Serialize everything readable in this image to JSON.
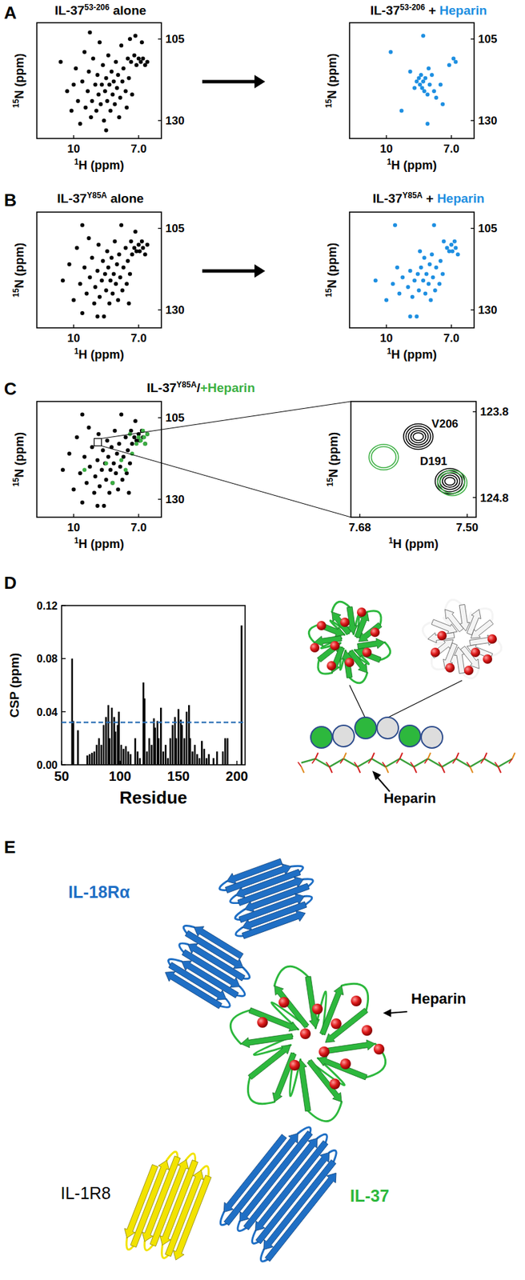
{
  "diagram": {
    "panel_labels": [
      "A",
      "B",
      "C",
      "D",
      "E"
    ],
    "d_schematic": {
      "heparin": "Heparin"
    },
    "e_structure": {
      "receptor_1": {
        "text": "IL-18Rα",
        "color": "#1f6fc5"
      },
      "receptor_2": {
        "text": "IL-1R8",
        "color": "#000000"
      },
      "ligand": {
        "text": "IL-37",
        "color": "#2db83d"
      },
      "heparin": "Heparin"
    }
  },
  "chart_data": [
    {
      "type": "scatter",
      "title": [
        {
          "text": "IL-37"
        },
        {
          "text": "53-206",
          "sup": true
        },
        {
          "text": " alone"
        }
      ],
      "x_label": [
        {
          "text": "1",
          "sup": true
        },
        {
          "text": "H (ppm)"
        }
      ],
      "y_label": [
        {
          "text": "15",
          "sup": true
        },
        {
          "text": "N (ppm)"
        }
      ],
      "xlim": [
        11.7,
        5.95
      ],
      "ylim": [
        135.5,
        100
      ],
      "xticks": [
        10,
        {
          "value": 7,
          "label": "7.0"
        }
      ],
      "yticks": [
        105,
        130
      ],
      "series": [
        {
          "color": "#000000",
          "marker": "circle",
          "x": [
            10.6,
            10.3,
            10.1,
            9.9,
            9.8,
            9.7,
            9.6,
            9.5,
            9.45,
            9.35,
            9.3,
            9.2,
            9.15,
            9.1,
            9.0,
            8.95,
            8.9,
            8.85,
            8.8,
            8.75,
            8.7,
            8.65,
            8.6,
            8.55,
            8.5,
            8.45,
            8.4,
            8.35,
            8.3,
            8.25,
            8.2,
            8.15,
            8.1,
            8.05,
            8.0,
            7.95,
            7.9,
            7.85,
            7.8,
            7.75,
            7.7,
            7.6,
            7.55,
            7.5,
            7.45,
            7.4,
            7.35,
            7.3,
            7.2,
            7.15,
            7.1,
            7.0,
            6.9,
            6.85,
            6.8,
            6.7,
            6.6,
            9.25,
            8.5,
            10.0
          ],
          "values": [
            112,
            121,
            127,
            114,
            124,
            131,
            118,
            109,
            126,
            121,
            115,
            129,
            124,
            111,
            119,
            127,
            116,
            122,
            106,
            125,
            119,
            113,
            130,
            121,
            117,
            124,
            110,
            119,
            127,
            115,
            122,
            118,
            125,
            112,
            120,
            116,
            129,
            123,
            107,
            118,
            114,
            121,
            126,
            111,
            117,
            105,
            112,
            122,
            110,
            104,
            113,
            111,
            112,
            106,
            111,
            113,
            112,
            103,
            133,
            119
          ]
        }
      ]
    },
    {
      "type": "scatter",
      "title": [
        {
          "text": "IL-37"
        },
        {
          "text": "53-206",
          "sup": true
        },
        {
          "text": " + "
        },
        {
          "text": "Heparin",
          "color": "#1e8fe1"
        }
      ],
      "x_label": [
        {
          "text": "1",
          "sup": true
        },
        {
          "text": "H (ppm)"
        }
      ],
      "y_label": [
        {
          "text": "15",
          "sup": true
        },
        {
          "text": "N (ppm)"
        }
      ],
      "xlim": [
        11.7,
        5.95
      ],
      "ylim": [
        135.5,
        100
      ],
      "xticks": [
        10,
        {
          "value": 7,
          "label": "7.0"
        }
      ],
      "yticks": [
        105,
        130
      ],
      "series": [
        {
          "color": "#1e8fe1",
          "marker": "circle",
          "x": [
            9.8,
            9.3,
            8.9,
            8.7,
            8.6,
            8.5,
            8.45,
            8.4,
            8.35,
            8.3,
            8.25,
            8.2,
            8.1,
            8.05,
            8.0,
            7.9,
            7.8,
            7.7,
            7.5,
            7.1,
            6.9,
            6.8,
            8.3,
            8.1,
            7.4
          ],
          "values": [
            109,
            127,
            115,
            120,
            118,
            117,
            119,
            116,
            120,
            118,
            121,
            117,
            122,
            114,
            119,
            116,
            121,
            123,
            119,
            113,
            111,
            112,
            104,
            131,
            125
          ]
        }
      ]
    },
    {
      "type": "scatter",
      "title": [
        {
          "text": "IL-37"
        },
        {
          "text": "Y85A",
          "sup": true
        },
        {
          "text": " alone"
        }
      ],
      "x_label": [
        {
          "text": "1",
          "sup": true
        },
        {
          "text": "H (ppm)"
        }
      ],
      "y_label": [
        {
          "text": "15",
          "sup": true
        },
        {
          "text": "N (ppm)"
        }
      ],
      "xlim": [
        11.7,
        5.95
      ],
      "ylim": [
        135.5,
        100
      ],
      "xticks": [
        10,
        {
          "value": 7,
          "label": "7.0"
        }
      ],
      "yticks": [
        105,
        130
      ],
      "series": [
        {
          "color": "#000000",
          "marker": "circle",
          "x": [
            10.5,
            10.2,
            10.0,
            9.85,
            9.7,
            9.6,
            9.5,
            9.4,
            9.3,
            9.25,
            9.15,
            9.05,
            9.0,
            8.9,
            8.85,
            8.8,
            8.7,
            8.65,
            8.6,
            8.55,
            8.5,
            8.45,
            8.4,
            8.35,
            8.3,
            8.25,
            8.2,
            8.15,
            8.1,
            8.05,
            8.0,
            7.95,
            7.9,
            7.85,
            7.8,
            7.75,
            7.7,
            7.6,
            7.55,
            7.5,
            7.45,
            7.4,
            7.35,
            7.3,
            7.2,
            7.15,
            7.1,
            7.0,
            6.95,
            6.85,
            6.8,
            6.7,
            6.6,
            9.6,
            8.9
          ],
          "values": [
            121,
            116,
            127,
            111,
            122,
            131,
            117,
            125,
            108,
            120,
            114,
            128,
            123,
            118,
            110,
            126,
            121,
            115,
            132,
            119,
            124,
            112,
            117,
            128,
            121,
            114,
            125,
            119,
            109,
            122,
            116,
            127,
            113,
            120,
            104,
            124,
            117,
            111,
            122,
            115,
            128,
            119,
            109,
            113,
            111,
            106,
            112,
            110,
            112,
            109,
            111,
            113,
            110,
            104,
            132
          ]
        }
      ]
    },
    {
      "type": "scatter",
      "title": [
        {
          "text": "IL-37"
        },
        {
          "text": "Y85A",
          "sup": true
        },
        {
          "text": " + "
        },
        {
          "text": "Heparin",
          "color": "#1e8fe1"
        }
      ],
      "x_label": [
        {
          "text": "1",
          "sup": true
        },
        {
          "text": "H (ppm)"
        }
      ],
      "y_label": [
        {
          "text": "15",
          "sup": true
        },
        {
          "text": "N (ppm)"
        }
      ],
      "xlim": [
        11.7,
        5.95
      ],
      "ylim": [
        135.5,
        100
      ],
      "xticks": [
        10,
        {
          "value": 7,
          "label": "7.0"
        }
      ],
      "yticks": [
        105,
        130
      ],
      "series": [
        {
          "color": "#1e8fe1",
          "marker": "circle",
          "x": [
            10.5,
            10.0,
            9.7,
            9.5,
            9.4,
            9.25,
            9.0,
            8.9,
            8.8,
            8.7,
            8.6,
            8.55,
            8.5,
            8.45,
            8.4,
            8.3,
            8.25,
            8.2,
            8.15,
            8.05,
            8.0,
            7.95,
            7.9,
            7.85,
            7.8,
            7.75,
            7.7,
            7.55,
            7.5,
            7.4,
            7.35,
            7.2,
            7.1,
            7.0,
            6.95,
            6.85,
            6.8,
            6.7,
            9.6,
            8.9
          ],
          "values": [
            121,
            127,
            122,
            117,
            125,
            120,
            123,
            118,
            126,
            121,
            132,
            119,
            124,
            112,
            117,
            121,
            114,
            125,
            119,
            122,
            116,
            127,
            113,
            120,
            104,
            124,
            117,
            122,
            115,
            119,
            109,
            111,
            112,
            110,
            112,
            109,
            111,
            113,
            104,
            132
          ]
        }
      ]
    },
    {
      "type": "scatter",
      "title": [
        {
          "text": "IL-37"
        },
        {
          "text": "Y85A",
          "sup": true
        },
        {
          "text": "/"
        },
        {
          "text": "+Heparin",
          "color": "#3cb043"
        }
      ],
      "x_label": [
        {
          "text": "1",
          "sup": true
        },
        {
          "text": "H (ppm)"
        }
      ],
      "y_label": [
        {
          "text": "15",
          "sup": true
        },
        {
          "text": "N (ppm)"
        }
      ],
      "xlim": [
        11.7,
        5.95
      ],
      "ylim": [
        135.5,
        100
      ],
      "xticks": [
        10,
        {
          "value": 7,
          "label": "7.0"
        }
      ],
      "yticks": [
        105,
        130
      ],
      "series": [
        {
          "color": "#000000",
          "marker": "circle",
          "x": [
            10.5,
            10.2,
            10.0,
            9.85,
            9.7,
            9.6,
            9.5,
            9.4,
            9.3,
            9.25,
            9.15,
            9.05,
            9.0,
            8.9,
            8.85,
            8.8,
            8.7,
            8.65,
            8.6,
            8.55,
            8.5,
            8.45,
            8.4,
            8.35,
            8.3,
            8.25,
            8.2,
            8.15,
            8.1,
            8.05,
            8.0,
            7.95,
            7.9,
            7.85,
            7.8,
            7.75,
            7.7,
            7.6,
            7.55,
            7.5,
            7.45,
            7.4,
            7.35,
            7.3,
            7.2,
            7.15,
            7.1,
            7.0,
            6.95,
            6.85,
            6.8,
            6.7,
            6.6,
            9.6,
            8.9
          ],
          "values": [
            121,
            116,
            127,
            111,
            122,
            131,
            117,
            125,
            108,
            120,
            114,
            128,
            123,
            118,
            110,
            126,
            121,
            115,
            132,
            119,
            124,
            112,
            117,
            128,
            121,
            114,
            125,
            119,
            109,
            122,
            116,
            127,
            113,
            120,
            104,
            124,
            117,
            111,
            122,
            115,
            128,
            119,
            109,
            113,
            111,
            106,
            112,
            110,
            112,
            109,
            111,
            113,
            110,
            104,
            132
          ]
        },
        {
          "color": "#3cb043",
          "marker": "circle",
          "x": [
            7.0,
            6.9,
            6.8,
            6.75,
            6.7,
            7.1,
            7.3,
            7.6,
            7.8,
            8.2,
            8.5,
            9.5,
            7.4,
            6.6
          ],
          "values": [
            111,
            112,
            109,
            111,
            113,
            113,
            116,
            121,
            118,
            125,
            119,
            121,
            110,
            110
          ]
        }
      ]
    },
    {
      "type": "scatter",
      "x_label": [
        {
          "text": "1",
          "sup": true
        },
        {
          "text": "H (ppm)"
        }
      ],
      "y_label": [
        {
          "text": "15",
          "sup": true
        },
        {
          "text": "N (ppm)"
        }
      ],
      "xlim": [
        7.695,
        7.485
      ],
      "ylim": [
        125.03,
        123.68
      ],
      "xticks": [
        7.68,
        {
          "value": 7.5,
          "label": "7.50"
        }
      ],
      "yticks": [
        123.8,
        124.8
      ],
      "series": [
        {
          "color": "#000000",
          "marker": "contour",
          "x": [
            7.582,
            7.529
          ],
          "values": [
            124.09,
            124.61
          ],
          "labels": [
            "V206",
            "D191"
          ]
        },
        {
          "color": "#3cb043",
          "marker": "contour",
          "x": [
            7.64,
            7.525
          ],
          "values": [
            124.33,
            124.63
          ]
        }
      ]
    },
    {
      "type": "bar",
      "x_label": "Residue",
      "y_label": "CSP (ppm)",
      "color": "#000000",
      "x": [
        59,
        60,
        64,
        72,
        74,
        76,
        78,
        80,
        82,
        84,
        86,
        88,
        90,
        91,
        93,
        95,
        96,
        98,
        99,
        101,
        103,
        105,
        107,
        109,
        113,
        115,
        117,
        120,
        121,
        123,
        125,
        127,
        129,
        130,
        132,
        133,
        135,
        137,
        139,
        141,
        143,
        145,
        147,
        148,
        150,
        152,
        153,
        155,
        157,
        159,
        160,
        162,
        164,
        166,
        168,
        170,
        172,
        174,
        176,
        180,
        183,
        188,
        190,
        192,
        204
      ],
      "values": [
        0.08,
        0.033,
        0.026,
        0.007,
        0.008,
        0.009,
        0.01,
        0.015,
        0.02,
        0.015,
        0.03,
        0.036,
        0.045,
        0.02,
        0.043,
        0.036,
        0.025,
        0.03,
        0.04,
        0.015,
        0.012,
        0.014,
        0.01,
        0.008,
        0.02,
        0.01,
        0.005,
        0.062,
        0.05,
        0.01,
        0.02,
        0.015,
        0.035,
        0.028,
        0.033,
        0.02,
        0.043,
        0.01,
        0.015,
        0.005,
        0.02,
        0.03,
        0.036,
        0.02,
        0.042,
        0.034,
        0.03,
        0.02,
        0.04,
        0.045,
        0.02,
        0.01,
        0.015,
        0.008,
        0.005,
        0.018,
        0.012,
        0.005,
        0.008,
        0.005,
        0.01,
        0.01,
        0.02,
        0.02,
        0.105
      ],
      "xlim": [
        50,
        207
      ],
      "xticks": [
        50,
        100,
        150,
        200
      ],
      "ylim": [
        0,
        0.12
      ],
      "yticks": [
        {
          "value": 0,
          "label": "0.00"
        },
        {
          "value": 0.04,
          "label": "0.04"
        },
        {
          "value": 0.08,
          "label": "0.08"
        },
        {
          "value": 0.12,
          "label": "0.12"
        }
      ],
      "threshold": {
        "value": 0.032,
        "color": "#2a6fb5",
        "line_style": "dashed"
      }
    }
  ]
}
